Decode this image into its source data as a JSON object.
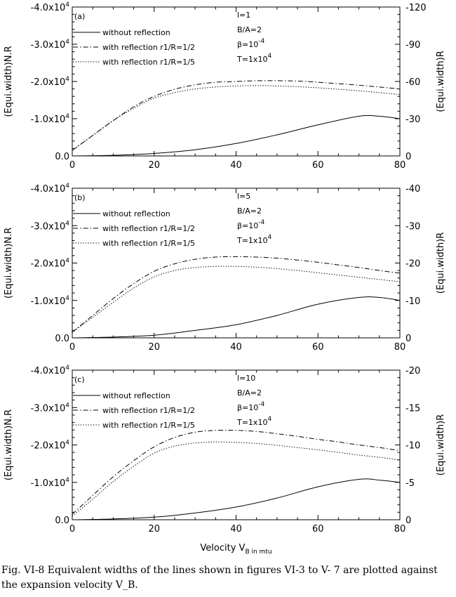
{
  "figure": {
    "xlabel": "Velocity V_B in mtu",
    "caption": {
      "line1": "Fig. VI-8 Equivalent widths of the lines shown in figures VI-3 to V- 7 are plotted against",
      "line2": "the expansion velocity V_B."
    }
  },
  "chart_data": [
    {
      "type": "line",
      "panel_label": "(a)",
      "xlim": [
        0,
        80
      ],
      "x_ticks": [
        "0",
        "20",
        "40",
        "60",
        "80"
      ],
      "ylabel_left": "(Equi.width)N.R",
      "ylabel_right": "(Equi.width)R",
      "ylim_left": [
        0,
        -40000
      ],
      "ylim_right": [
        0,
        -120
      ],
      "left_ticks": [
        "0.0",
        "-1.0x10^4",
        "-2.0x10^4",
        "-3.0x10^4",
        "-4.0x10^4"
      ],
      "right_ticks": [
        "0",
        "-30",
        "-60",
        "-90",
        "-120"
      ],
      "params": [
        "l=1",
        "B/A=2",
        "β=10^-4",
        "T=1x10^4"
      ],
      "series": [
        {
          "name": "without reflection",
          "style": "solid",
          "axis": "right",
          "x": [
            0,
            10,
            20,
            30,
            40,
            50,
            60,
            70,
            75,
            80
          ],
          "y": [
            0,
            -0.5,
            -2,
            -5,
            -10,
            -17,
            -25,
            -32,
            -32,
            -30
          ]
        },
        {
          "name": "with reflection r1/R=1/2",
          "style": "dashdot",
          "axis": "left",
          "x": [
            0,
            5,
            10,
            15,
            20,
            25,
            30,
            35,
            40,
            45,
            50,
            55,
            60,
            65,
            70,
            75,
            80
          ],
          "y": [
            -1500,
            -5500,
            -9500,
            -13200,
            -16000,
            -17900,
            -19100,
            -19800,
            -20000,
            -20200,
            -20200,
            -20100,
            -19800,
            -19400,
            -19000,
            -18500,
            -18000
          ]
        },
        {
          "name": "with reflection r1/R=1/5",
          "style": "dotted",
          "axis": "left",
          "x": [
            0,
            5,
            10,
            15,
            20,
            25,
            30,
            35,
            40,
            45,
            50,
            55,
            60,
            65,
            70,
            75,
            80
          ],
          "y": [
            -1500,
            -5500,
            -9500,
            -12800,
            -15500,
            -17000,
            -18000,
            -18500,
            -18800,
            -18900,
            -18800,
            -18600,
            -18300,
            -17900,
            -17500,
            -17000,
            -16500
          ]
        }
      ]
    },
    {
      "type": "line",
      "panel_label": "(b)",
      "xlim": [
        0,
        80
      ],
      "x_ticks": [
        "0",
        "20",
        "40",
        "60",
        "80"
      ],
      "ylabel_left": "(Equi.width)N.R",
      "ylabel_right": "(Equi.width)R",
      "ylim_left": [
        0,
        -40000
      ],
      "ylim_right": [
        0,
        -40
      ],
      "left_ticks": [
        "0.0",
        "-1.0x10^4",
        "-2.0x10^4",
        "-3.0x10^4",
        "-4.0x10^4"
      ],
      "right_ticks": [
        "0",
        "-10",
        "-20",
        "-30",
        "-40"
      ],
      "params": [
        "l=5",
        "B/A=2",
        "β=10^-4",
        "T=1x10^4"
      ],
      "series": [
        {
          "name": "without reflection",
          "style": "solid",
          "axis": "right",
          "x": [
            0,
            10,
            20,
            30,
            40,
            50,
            60,
            70,
            75,
            80
          ],
          "y": [
            0,
            -0.2,
            -0.7,
            -2,
            -3.5,
            -6,
            -9,
            -10.8,
            -10.8,
            -10
          ]
        },
        {
          "name": "with reflection r1/R=1/2",
          "style": "dashdot",
          "axis": "left",
          "x": [
            0,
            5,
            10,
            15,
            20,
            25,
            30,
            35,
            40,
            45,
            50,
            55,
            60,
            65,
            70,
            75,
            80
          ],
          "y": [
            -1500,
            -6000,
            -10500,
            -14500,
            -17800,
            -19800,
            -21000,
            -21600,
            -21700,
            -21600,
            -21300,
            -20800,
            -20200,
            -19500,
            -18800,
            -18000,
            -17300
          ]
        },
        {
          "name": "with reflection r1/R=1/5",
          "style": "dotted",
          "axis": "left",
          "x": [
            0,
            5,
            10,
            15,
            20,
            25,
            30,
            35,
            40,
            45,
            50,
            55,
            60,
            65,
            70,
            75,
            80
          ],
          "y": [
            -1500,
            -5500,
            -9500,
            -13300,
            -16300,
            -18000,
            -18800,
            -19100,
            -19100,
            -18900,
            -18500,
            -18000,
            -17400,
            -16800,
            -16200,
            -15600,
            -15000
          ]
        }
      ]
    },
    {
      "type": "line",
      "panel_label": "(c)",
      "xlim": [
        0,
        80
      ],
      "x_ticks": [
        "0",
        "20",
        "40",
        "60",
        "80"
      ],
      "ylabel_left": "(Equi.width)N.R",
      "ylabel_right": "(Equi.width)R",
      "ylim_left": [
        0,
        -40000
      ],
      "ylim_right": [
        0,
        -20
      ],
      "left_ticks": [
        "0.0",
        "-1.0x10^4",
        "-2.0x10^4",
        "-3.0x10^4",
        "-4.0x10^4"
      ],
      "right_ticks": [
        "0",
        "-5",
        "-10",
        "-15",
        "-20"
      ],
      "params": [
        "l=10",
        "B/A=2",
        "β=10^-4",
        "T=1x10^4"
      ],
      "series": [
        {
          "name": "without reflection",
          "style": "solid",
          "axis": "right",
          "x": [
            0,
            10,
            20,
            30,
            40,
            50,
            60,
            70,
            75,
            80
          ],
          "y": [
            0,
            -0.1,
            -0.35,
            -0.9,
            -1.7,
            -2.9,
            -4.4,
            -5.4,
            -5.3,
            -5
          ]
        },
        {
          "name": "with reflection r1/R=1/2",
          "style": "dashdot",
          "axis": "left",
          "x": [
            0,
            5,
            10,
            15,
            20,
            25,
            30,
            35,
            40,
            45,
            50,
            55,
            60,
            65,
            70,
            75,
            80
          ],
          "y": [
            -1500,
            -6500,
            -11500,
            -15800,
            -19500,
            -22000,
            -23400,
            -23900,
            -23900,
            -23600,
            -23000,
            -22300,
            -21500,
            -20800,
            -20000,
            -19300,
            -18500
          ]
        },
        {
          "name": "with reflection r1/R=1/5",
          "style": "dotted",
          "axis": "left",
          "x": [
            0,
            5,
            10,
            15,
            20,
            25,
            30,
            35,
            40,
            45,
            50,
            55,
            60,
            65,
            70,
            75,
            80
          ],
          "y": [
            -1000,
            -5500,
            -10200,
            -14300,
            -17800,
            -19700,
            -20500,
            -20800,
            -20700,
            -20400,
            -19900,
            -19300,
            -18700,
            -18000,
            -17300,
            -16700,
            -16000
          ]
        }
      ]
    }
  ]
}
